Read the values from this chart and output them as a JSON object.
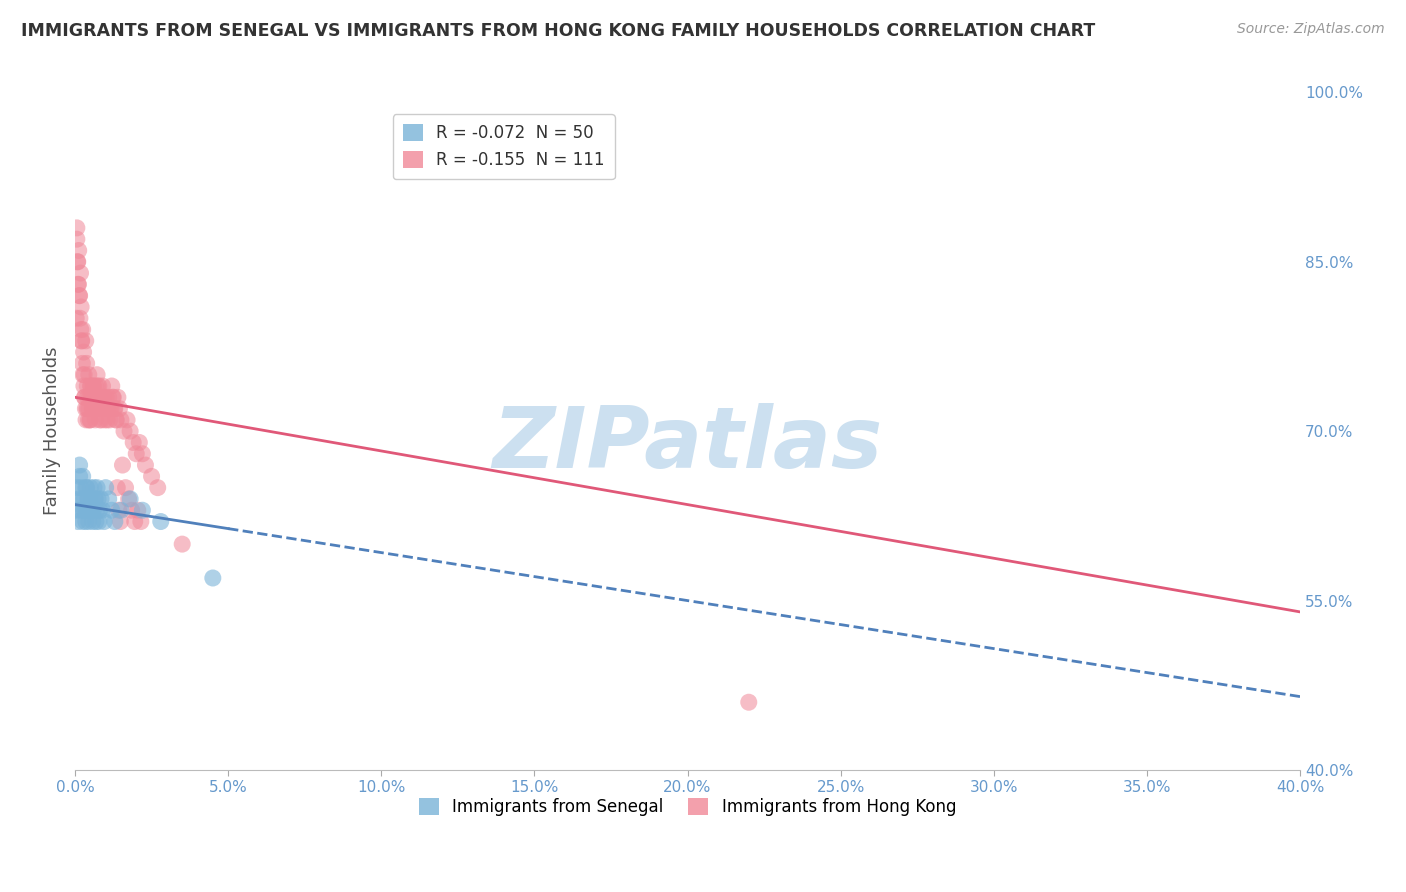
{
  "title": "IMMIGRANTS FROM SENEGAL VS IMMIGRANTS FROM HONG KONG FAMILY HOUSEHOLDS CORRELATION CHART",
  "source": "Source: ZipAtlas.com",
  "ylabel_label": "Family Households",
  "xmin": 0.0,
  "xmax": 40.0,
  "ymin": 40.0,
  "ymax": 100.0,
  "senegal_color": "#7ab3d8",
  "hongkong_color": "#f08898",
  "senegal_line_color": "#5080bb",
  "hongkong_line_color": "#e05878",
  "watermark_text": "ZIPatlas",
  "watermark_color": "#cce0f0",
  "background_color": "#ffffff",
  "grid_color": "#dddddd",
  "title_color": "#333333",
  "axis_color": "#6699cc",
  "yticks": [
    40,
    55,
    70,
    85,
    100
  ],
  "xticks": [
    0,
    5,
    10,
    15,
    20,
    25,
    30,
    35,
    40
  ],
  "senegal_r": -0.072,
  "senegal_n": 50,
  "hongkong_r": -0.155,
  "hongkong_n": 111,
  "senegal_line_x0": 0.0,
  "senegal_line_y0": 63.5,
  "senegal_line_x1": 40.0,
  "senegal_line_y1": 46.5,
  "senegal_solid_end": 5.0,
  "hongkong_line_x0": 0.0,
  "hongkong_line_y0": 73.0,
  "hongkong_line_x1": 40.0,
  "hongkong_line_y1": 54.0,
  "senegal_x": [
    0.05,
    0.08,
    0.1,
    0.12,
    0.15,
    0.18,
    0.2,
    0.22,
    0.25,
    0.28,
    0.3,
    0.32,
    0.35,
    0.38,
    0.4,
    0.42,
    0.45,
    0.48,
    0.5,
    0.52,
    0.55,
    0.58,
    0.6,
    0.62,
    0.65,
    0.68,
    0.7,
    0.72,
    0.75,
    0.78,
    0.8,
    0.85,
    0.9,
    0.95,
    1.0,
    1.1,
    1.2,
    1.3,
    1.5,
    1.8,
    2.2,
    2.8,
    0.15,
    0.25,
    0.35,
    0.45,
    0.55,
    0.65,
    4.5,
    0.4
  ],
  "senegal_y": [
    63,
    65,
    62,
    64,
    66,
    63,
    65,
    64,
    62,
    63,
    64,
    63,
    62,
    65,
    63,
    64,
    62,
    63,
    65,
    63,
    64,
    62,
    63,
    65,
    64,
    62,
    63,
    65,
    64,
    62,
    63,
    64,
    63,
    62,
    65,
    64,
    63,
    62,
    63,
    64,
    63,
    62,
    67,
    66,
    65,
    64,
    63,
    64,
    57,
    63
  ],
  "hongkong_x": [
    0.04,
    0.06,
    0.08,
    0.1,
    0.12,
    0.15,
    0.18,
    0.2,
    0.22,
    0.25,
    0.28,
    0.3,
    0.32,
    0.35,
    0.38,
    0.4,
    0.42,
    0.45,
    0.48,
    0.5,
    0.52,
    0.55,
    0.58,
    0.6,
    0.62,
    0.65,
    0.68,
    0.7,
    0.72,
    0.75,
    0.78,
    0.8,
    0.85,
    0.9,
    0.95,
    1.0,
    1.05,
    1.1,
    1.15,
    1.2,
    1.25,
    1.3,
    1.35,
    1.4,
    1.45,
    1.5,
    1.6,
    1.7,
    1.8,
    1.9,
    2.0,
    2.1,
    2.2,
    2.3,
    2.5,
    2.7,
    0.06,
    0.09,
    0.11,
    0.14,
    0.16,
    0.19,
    0.21,
    0.24,
    0.26,
    0.29,
    0.31,
    0.34,
    0.36,
    0.39,
    0.41,
    0.44,
    0.46,
    0.49,
    0.51,
    0.54,
    0.56,
    0.59,
    0.61,
    0.64,
    0.66,
    0.69,
    0.71,
    0.74,
    0.76,
    0.79,
    0.81,
    0.84,
    0.86,
    0.89,
    0.92,
    0.97,
    1.02,
    1.08,
    1.13,
    1.18,
    1.23,
    1.28,
    1.33,
    1.38,
    1.43,
    1.48,
    1.55,
    1.65,
    1.75,
    1.85,
    1.95,
    2.05,
    2.15,
    22.0,
    3.5
  ],
  "hongkong_y": [
    80,
    88,
    85,
    83,
    86,
    82,
    84,
    81,
    78,
    79,
    77,
    75,
    73,
    78,
    76,
    74,
    72,
    75,
    73,
    71,
    74,
    73,
    72,
    74,
    73,
    72,
    74,
    73,
    75,
    72,
    74,
    73,
    72,
    74,
    73,
    72,
    71,
    73,
    72,
    74,
    73,
    72,
    71,
    73,
    72,
    71,
    70,
    71,
    70,
    69,
    68,
    69,
    68,
    67,
    66,
    65,
    87,
    85,
    83,
    82,
    80,
    79,
    78,
    76,
    75,
    74,
    73,
    72,
    71,
    72,
    73,
    71,
    72,
    71,
    74,
    73,
    72,
    74,
    73,
    72,
    71,
    73,
    72,
    74,
    73,
    72,
    71,
    72,
    71,
    73,
    72,
    71,
    73,
    72,
    71,
    72,
    73,
    72,
    71,
    65,
    63,
    62,
    67,
    65,
    64,
    63,
    62,
    63,
    62,
    46,
    60
  ]
}
